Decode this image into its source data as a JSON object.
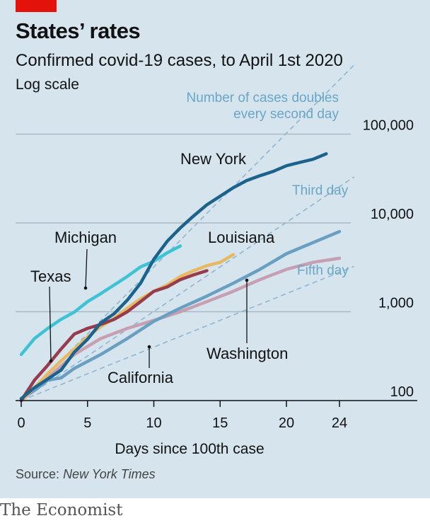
{
  "header": {
    "title": "States’ rates",
    "subtitle": "Confirmed covid-19 cases, to April 1st 2020",
    "scale_note": "Log scale"
  },
  "footer": {
    "source_label": "Source:",
    "source_name": "New York Times",
    "brand": "The Economist"
  },
  "chart_data": {
    "type": "line",
    "xlabel": "Days since 100th case",
    "x_ticks": [
      0,
      5,
      10,
      15,
      20,
      24
    ],
    "y_ticks": [
      100,
      1000,
      10000,
      100000
    ],
    "y_tick_labels": [
      "100",
      "1,000",
      "10,000",
      "100,000"
    ],
    "xlim": [
      0,
      28
    ],
    "ylim": [
      100,
      200000
    ],
    "yscale": "log",
    "grid": "horizontal",
    "reference_lines": [
      {
        "name": "Number of cases doubles every second day",
        "line1": "Number of cases doubles",
        "line2": "every second day",
        "doubling_days": 2
      },
      {
        "name": "Third day",
        "doubling_days": 3
      },
      {
        "name": "Fifth day",
        "doubling_days": 5
      }
    ],
    "series": [
      {
        "name": "New York",
        "color": "#1b628d",
        "x": [
          0,
          1,
          2,
          3,
          4,
          5,
          6,
          7,
          8,
          9,
          10,
          11,
          12,
          13,
          14,
          15,
          16,
          17,
          18,
          19,
          20,
          21,
          22,
          23
        ],
        "y": [
          105,
          140,
          175,
          220,
          350,
          490,
          750,
          950,
          1350,
          2100,
          3900,
          6200,
          8800,
          12000,
          16000,
          20000,
          25000,
          30000,
          34000,
          38000,
          44000,
          48000,
          52000,
          60000
        ]
      },
      {
        "name": "Michigan",
        "color": "#3ec3d5",
        "x": [
          0,
          1,
          2,
          3,
          4,
          5,
          6,
          7,
          8,
          9,
          10,
          11,
          12
        ],
        "y": [
          330,
          500,
          650,
          820,
          990,
          1300,
          1600,
          2000,
          2500,
          3200,
          3700,
          4600,
          5500
        ]
      },
      {
        "name": "Louisiana",
        "color": "#e8b963",
        "x": [
          0,
          1,
          2,
          3,
          4,
          5,
          6,
          7,
          8,
          9,
          10,
          11,
          12,
          13,
          14,
          15,
          16
        ],
        "y": [
          100,
          140,
          200,
          280,
          380,
          520,
          680,
          840,
          1100,
          1400,
          1700,
          2000,
          2500,
          2900,
          3300,
          3600,
          4400
        ]
      },
      {
        "name": "Texas",
        "color": "#963c4c",
        "x": [
          0,
          1,
          2,
          3,
          4,
          5,
          6,
          7,
          8,
          9,
          10,
          11,
          12,
          13,
          14
        ],
        "y": [
          100,
          170,
          250,
          380,
          560,
          650,
          720,
          820,
          1000,
          1300,
          1700,
          1900,
          2300,
          2600,
          2900
        ]
      },
      {
        "name": "Washington",
        "color": "#c6a0b2",
        "x": [
          0,
          2,
          4,
          6,
          8,
          10,
          12,
          14,
          16,
          18,
          20,
          22,
          24
        ],
        "y": [
          100,
          180,
          330,
          500,
          650,
          800,
          1000,
          1300,
          1700,
          2300,
          3000,
          3600,
          4000
        ]
      },
      {
        "name": "California",
        "color": "#6a9fc2",
        "x": [
          0,
          1,
          2,
          3,
          4,
          6,
          8,
          10,
          12,
          14,
          16,
          18,
          20,
          22,
          24
        ],
        "y": [
          105,
          130,
          170,
          180,
          230,
          330,
          500,
          780,
          1100,
          1500,
          2100,
          3000,
          4500,
          6000,
          8000
        ]
      }
    ]
  }
}
